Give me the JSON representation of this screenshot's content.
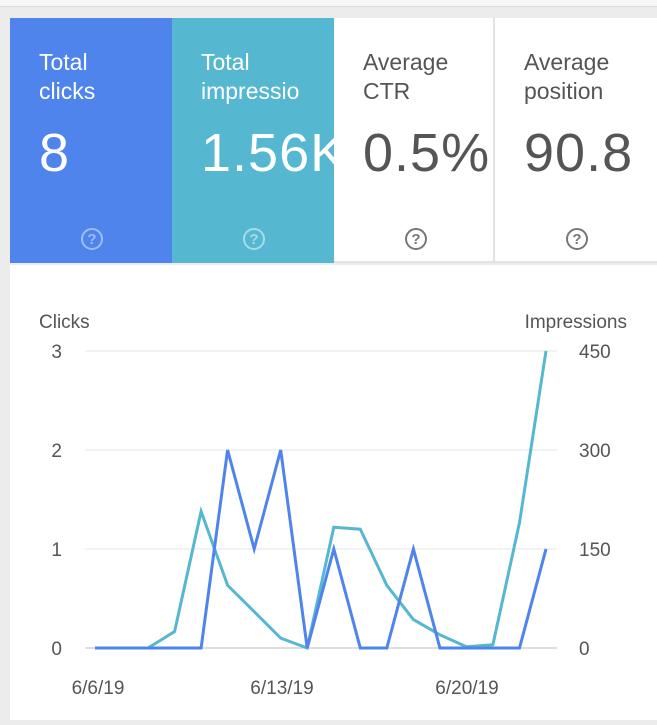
{
  "cards": [
    {
      "label": "Total\nclicks",
      "value": "8",
      "color": "#4e84ec",
      "selected": true
    },
    {
      "label": "Total\nimpressio",
      "value": "1.56K",
      "color": "#55b8d0",
      "selected": true
    },
    {
      "label": "Average\nCTR",
      "value": "0.5%",
      "selected": false
    },
    {
      "label": "Average\nposition",
      "value": "90.8",
      "selected": false
    }
  ],
  "chart_data": {
    "type": "line",
    "x": [
      "6/6/19",
      "6/7/19",
      "6/8/19",
      "6/9/19",
      "6/10/19",
      "6/11/19",
      "6/12/19",
      "6/13/19",
      "6/14/19",
      "6/15/19",
      "6/16/19",
      "6/17/19",
      "6/18/19",
      "6/19/19",
      "6/20/19",
      "6/21/19",
      "6/22/19",
      "6/23/19"
    ],
    "x_ticks": [
      "6/6/19",
      "6/13/19",
      "6/20/19"
    ],
    "ylabel_left": "Clicks",
    "ylabel_right": "Impressions",
    "ylim_left": [
      0,
      3
    ],
    "ylim_right": [
      0,
      450
    ],
    "yticks_left": [
      "0",
      "1",
      "2",
      "3"
    ],
    "yticks_right": [
      "0",
      "150",
      "300",
      "450"
    ],
    "grid": true,
    "series": [
      {
        "axis": "left",
        "color": "#4e84ec",
        "values": [
          0,
          0,
          0,
          0,
          0,
          2,
          1,
          2,
          0,
          1,
          0,
          0,
          1,
          0,
          0,
          0,
          0,
          1
        ]
      },
      {
        "axis": "right",
        "color": "#55b8d0",
        "values": [
          0,
          0,
          0,
          25,
          207,
          95,
          55,
          15,
          0,
          183,
          180,
          95,
          43,
          20,
          2,
          5,
          190,
          450
        ]
      }
    ]
  }
}
